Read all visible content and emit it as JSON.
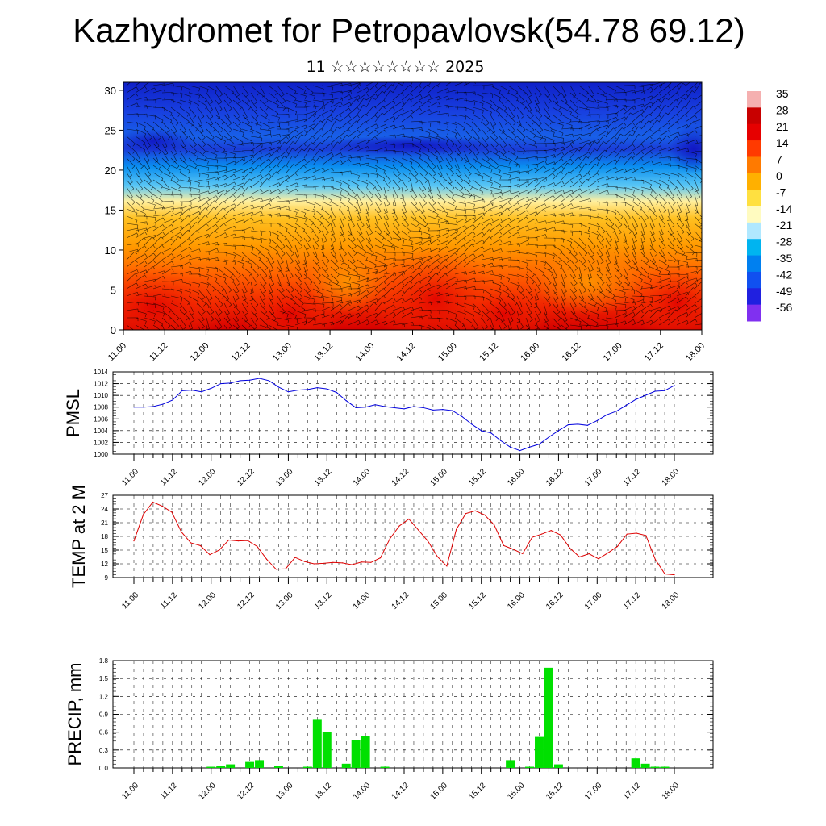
{
  "title": "Kazhydromet for Petropavlovsk(54.78 69.12)",
  "subtitle": "11 ☆☆☆☆☆☆☆☆ 2025",
  "chart_data": [
    {
      "type": "heatmap",
      "yticks": [
        0,
        5,
        10,
        15,
        20,
        25,
        30
      ],
      "ylim": [
        0,
        31
      ],
      "xticks": [
        "11.00",
        "11.12",
        "12.00",
        "12.12",
        "13.00",
        "13.12",
        "14.00",
        "14.12",
        "15.00",
        "15.12",
        "16.00",
        "16.12",
        "17.00",
        "17.12",
        "18.00"
      ],
      "colorbar_labels": [
        "35",
        "28",
        "21",
        "14",
        "7",
        "0",
        "-7",
        "-14",
        "-21",
        "-28",
        "-35",
        "-42",
        "-49",
        "-56"
      ],
      "colorbar_colors": [
        "#f5b0b0",
        "#c80000",
        "#e60000",
        "#ff3a00",
        "#ff7a00",
        "#ffb000",
        "#ffe040",
        "#fffbc0",
        "#b0e8ff",
        "#00b4f0",
        "#0080f0",
        "#1050f0",
        "#2020e0",
        "#8030f0"
      ]
    },
    {
      "type": "line",
      "ylabel": "PMSL",
      "yticks": [
        1000,
        1002,
        1004,
        1006,
        1008,
        1010,
        1012,
        1014
      ],
      "ylim": [
        1000,
        1014
      ],
      "xticks": [
        "11.00",
        "11.12",
        "12.00",
        "12.12",
        "13.00",
        "13.12",
        "14.00",
        "14.12",
        "15.00",
        "15.12",
        "16.00",
        "16.12",
        "17.00",
        "17.12",
        "18.00"
      ],
      "color": "#0000dd",
      "values": [
        1008.0,
        1008.0,
        1008.1,
        1008.5,
        1009.2,
        1010.8,
        1010.9,
        1010.6,
        1011.2,
        1012.0,
        1012.1,
        1012.5,
        1012.6,
        1012.9,
        1012.5,
        1011.4,
        1010.6,
        1010.9,
        1011.0,
        1011.3,
        1011.1,
        1010.5,
        1009.1,
        1007.9,
        1008.0,
        1008.4,
        1008.1,
        1007.9,
        1007.7,
        1008.1,
        1007.9,
        1007.5,
        1007.6,
        1007.4,
        1006.4,
        1005.1,
        1004.0,
        1003.6,
        1002.3,
        1001.2,
        1000.6,
        1001.2,
        1001.7,
        1002.9,
        1004.0,
        1005.0,
        1005.1,
        1004.9,
        1005.7,
        1006.7,
        1007.3,
        1008.3,
        1009.3,
        1010.0,
        1010.7,
        1010.8,
        1011.7
      ]
    },
    {
      "type": "line",
      "ylabel": "TEMP at 2 M",
      "yticks": [
        9,
        12,
        15,
        18,
        21,
        24,
        27
      ],
      "ylim": [
        9,
        27
      ],
      "xticks": [
        "11.00",
        "11.12",
        "12.00",
        "12.12",
        "13.00",
        "13.12",
        "14.00",
        "14.12",
        "15.00",
        "15.12",
        "16.00",
        "16.12",
        "17.00",
        "17.12",
        "18.00"
      ],
      "color": "#dd0000",
      "values": [
        17.0,
        22.8,
        25.5,
        24.6,
        23.3,
        19.0,
        16.6,
        16.0,
        14.0,
        15.0,
        17.2,
        17.0,
        17.1,
        15.8,
        13.0,
        10.8,
        10.9,
        13.4,
        12.5,
        12.0,
        12.1,
        12.3,
        12.2,
        11.8,
        12.4,
        12.3,
        13.3,
        17.5,
        20.3,
        21.8,
        19.4,
        17.0,
        13.6,
        11.5,
        19.5,
        23.0,
        23.6,
        22.7,
        20.5,
        16.0,
        15.2,
        14.2,
        17.8,
        18.5,
        19.3,
        18.3,
        15.4,
        13.5,
        14.2,
        13.1,
        14.4,
        15.8,
        18.5,
        18.7,
        18.2,
        12.9,
        9.8,
        9.6
      ]
    },
    {
      "type": "bar",
      "ylabel": "PRECIP, mm",
      "yticks": [
        "0.0",
        "0.3",
        "0.6",
        "0.9",
        "1.2",
        "1.5",
        "1.8"
      ],
      "ylim": [
        0,
        1.8
      ],
      "xticks": [
        "11.00",
        "11.12",
        "12.00",
        "12.12",
        "13.00",
        "13.12",
        "14.00",
        "14.12",
        "15.00",
        "15.12",
        "16.00",
        "16.12",
        "17.00",
        "17.12",
        "18.00"
      ],
      "color": "#00e000",
      "values": [
        0,
        0,
        0,
        0,
        0,
        0,
        0,
        0,
        0.02,
        0.03,
        0.06,
        0,
        0.1,
        0.13,
        0,
        0.04,
        0,
        0,
        0.02,
        0.82,
        0.6,
        0,
        0.07,
        0.47,
        0.53,
        0,
        0.02,
        0,
        0,
        0,
        0,
        0,
        0,
        0,
        0,
        0,
        0,
        0,
        0,
        0.13,
        0,
        0.02,
        0.52,
        1.68,
        0.06,
        0,
        0,
        0,
        0,
        0,
        0,
        0,
        0.16,
        0.07,
        0.02,
        0.02,
        0
      ]
    }
  ]
}
